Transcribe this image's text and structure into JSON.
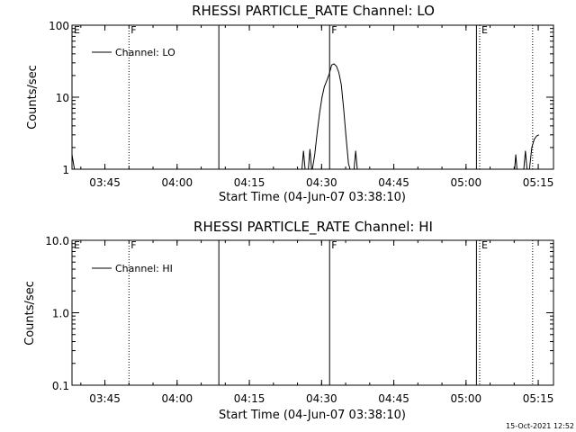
{
  "chart_data": [
    {
      "type": "line",
      "title": "RHESSI PARTICLE_RATE Channel: LO",
      "xlabel": "Start Time (04-Jun-07 03:38:10)",
      "ylabel": "Counts/sec",
      "yscale": "log",
      "ylim": [
        1,
        100
      ],
      "xlim": [
        "03:38:10",
        "05:18:10"
      ],
      "grid": false,
      "x_ticks": [
        "03:45",
        "04:00",
        "04:15",
        "04:30",
        "04:45",
        "05:00",
        "05:15"
      ],
      "y_ticks": [
        "1",
        "10",
        "100"
      ],
      "legend": {
        "placement": "top-left",
        "entries": [
          "Channel: LO"
        ]
      },
      "series": [
        {
          "name": "Channel: LO",
          "points": [
            [
              "03:38:10",
              1.6
            ],
            [
              "03:38:40",
              1.0
            ],
            [
              "04:25:55",
              1.0
            ],
            [
              "04:26:15",
              1.8
            ],
            [
              "04:26:35",
              1.0
            ],
            [
              "04:27:15",
              1.0
            ],
            [
              "04:27:35",
              1.9
            ],
            [
              "04:27:55",
              1.0
            ],
            [
              "04:28:05",
              1.0
            ],
            [
              "04:28:35",
              1.6
            ],
            [
              "04:29:05",
              3.2
            ],
            [
              "04:29:35",
              6.0
            ],
            [
              "04:30:05",
              10.0
            ],
            [
              "04:30:35",
              14.0
            ],
            [
              "04:31:05",
              17.0
            ],
            [
              "04:31:35",
              21.0
            ],
            [
              "04:32:05",
              28.0
            ],
            [
              "04:32:35",
              29.0
            ],
            [
              "04:33:05",
              27.0
            ],
            [
              "04:33:35",
              22.0
            ],
            [
              "04:34:05",
              15.0
            ],
            [
              "04:34:35",
              7.0
            ],
            [
              "04:35:05",
              2.8
            ],
            [
              "04:35:35",
              1.2
            ],
            [
              "04:35:55",
              1.0
            ],
            [
              "04:36:45",
              1.0
            ],
            [
              "04:37:05",
              1.8
            ],
            [
              "04:37:25",
              1.0
            ],
            [
              "05:10:05",
              1.0
            ],
            [
              "05:10:20",
              1.6
            ],
            [
              "05:10:35",
              1.0
            ],
            [
              "05:12:00",
              1.0
            ],
            [
              "05:12:20",
              1.8
            ],
            [
              "05:12:40",
              1.0
            ],
            [
              "05:13:10",
              1.0
            ],
            [
              "05:13:40",
              2.0
            ],
            [
              "05:14:10",
              2.6
            ],
            [
              "05:14:40",
              2.9
            ],
            [
              "05:15:10",
              3.0
            ]
          ]
        }
      ],
      "annotations": [
        {
          "time": "03:38:10",
          "style": "dotted",
          "label": "E"
        },
        {
          "time": "03:50:00",
          "style": "dotted",
          "label": "F"
        },
        {
          "time": "04:08:40",
          "style": "solid",
          "label": ""
        },
        {
          "time": "04:31:40",
          "style": "solid",
          "label": "F"
        },
        {
          "time": "05:02:10",
          "style": "solid",
          "label": ""
        },
        {
          "time": "05:02:50",
          "style": "dotted",
          "label": "E"
        },
        {
          "time": "05:13:50",
          "style": "dotted",
          "label": ""
        }
      ]
    },
    {
      "type": "line",
      "title": "RHESSI PARTICLE_RATE Channel: HI",
      "xlabel": "Start Time (04-Jun-07 03:38:10)",
      "ylabel": "Counts/sec",
      "yscale": "log",
      "ylim": [
        0.1,
        10
      ],
      "xlim": [
        "03:38:10",
        "05:18:10"
      ],
      "grid": false,
      "x_ticks": [
        "03:45",
        "04:00",
        "04:15",
        "04:30",
        "04:45",
        "05:00",
        "05:15"
      ],
      "y_ticks": [
        "0.1",
        "1.0",
        "10.0"
      ],
      "legend": {
        "placement": "top-left",
        "entries": [
          "Channel: HI"
        ]
      },
      "series": [
        {
          "name": "Channel: HI",
          "points": []
        }
      ],
      "annotations": [
        {
          "time": "03:38:10",
          "style": "dotted",
          "label": "E"
        },
        {
          "time": "03:50:00",
          "style": "dotted",
          "label": "F"
        },
        {
          "time": "04:08:40",
          "style": "solid",
          "label": ""
        },
        {
          "time": "04:31:40",
          "style": "solid",
          "label": "F"
        },
        {
          "time": "05:02:10",
          "style": "solid",
          "label": ""
        },
        {
          "time": "05:02:50",
          "style": "dotted",
          "label": "E"
        },
        {
          "time": "05:13:50",
          "style": "dotted",
          "label": ""
        }
      ]
    }
  ],
  "footer": {
    "timestamp": "15-Oct-2021 12:52"
  }
}
